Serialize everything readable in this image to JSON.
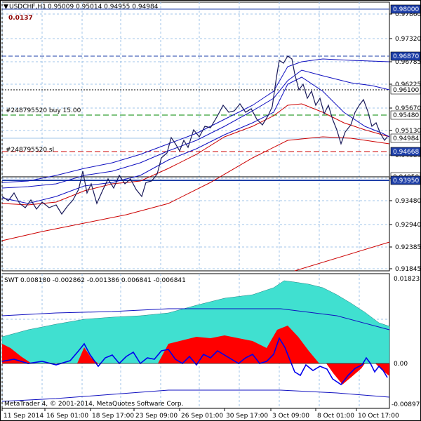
{
  "header": {
    "symbol_line": "USDCHF,H1",
    "ohlc": "0.95009 0.95014 0.94955 0.94984",
    "indicator_value": "0.0137"
  },
  "price_axis": {
    "ticks": [
      "0.97860",
      "0.97320",
      "0.96785",
      "0.96225",
      "0.95670",
      "0.95130",
      "0.94585",
      "0.94030",
      "0.93480",
      "0.92940",
      "0.92385",
      "0.91845"
    ]
  },
  "price_labels": [
    {
      "value": 0.98,
      "text": "0.98000",
      "bg": "#1e3fa8",
      "fg": "#ffffff"
    },
    {
      "value": 0.9687,
      "text": "0.96870",
      "bg": "#1e3fa8",
      "fg": "#ffffff"
    },
    {
      "value": 0.961,
      "text": "0.96100",
      "bg": "#ffffff",
      "fg": "#000000"
    },
    {
      "value": 0.9548,
      "text": "0.95480",
      "bg": "#ffffff",
      "fg": "#000000"
    },
    {
      "value": 0.94984,
      "text": "0.94984",
      "bg": "#ffffff",
      "fg": "#000000"
    },
    {
      "value": 0.94668,
      "text": "0.94668",
      "bg": "#1e3fa8",
      "fg": "#ffffff"
    },
    {
      "value": 0.9405,
      "text": "0.94050",
      "bg": "#ffffff",
      "fg": "#000000"
    },
    {
      "value": 0.9395,
      "text": "0.93950",
      "bg": "#1e3fa8",
      "fg": "#ffffff"
    }
  ],
  "order_labels": {
    "buy": "#248795520 buy 15.00",
    "sl": "#248795520 sl"
  },
  "indicator": {
    "title": "SWT 0.008180 -0.002862 -0.001386 0.006841 -0.006841",
    "ticks": [
      "0.01823",
      "0.00",
      "-0.008972"
    ],
    "copyright": "MetaTrader 4, © 2001-2014, MetaQuotes Software Corp."
  },
  "time_axis": {
    "labels": [
      "11 Sep 2014",
      "16 Sep 01:00",
      "18 Sep 17:00",
      "23 Sep 09:00",
      "26 Sep 01:00",
      "30 Sep 17:00",
      "3 Oct 09:00",
      "8 Oct 01:00",
      "10 Oct 17:00"
    ]
  },
  "colors": {
    "price_line": "#1a1a5a",
    "bands": "#1010c0",
    "ma_red": "#cc0000",
    "swt_cyan": "#40e0d0",
    "swt_red": "#ff0000",
    "swt_blue": "#0000ee",
    "grid": "#a0c4e8"
  },
  "chart_data": {
    "type": "line",
    "title": "USDCHF,H1",
    "x": [
      "11 Sep 2014",
      "16 Sep 01:00",
      "18 Sep 17:00",
      "23 Sep 09:00",
      "26 Sep 01:00",
      "30 Sep 17:00",
      "3 Oct 09:00",
      "8 Oct 01:00",
      "10 Oct 17:00"
    ],
    "series": [
      {
        "name": "USDCHF,H1",
        "values": [
          0.938,
          0.935,
          0.941,
          0.944,
          0.947,
          0.954,
          0.967,
          0.954,
          0.949
        ]
      }
    ],
    "ylim": [
      0.91845,
      0.98
    ]
  }
}
